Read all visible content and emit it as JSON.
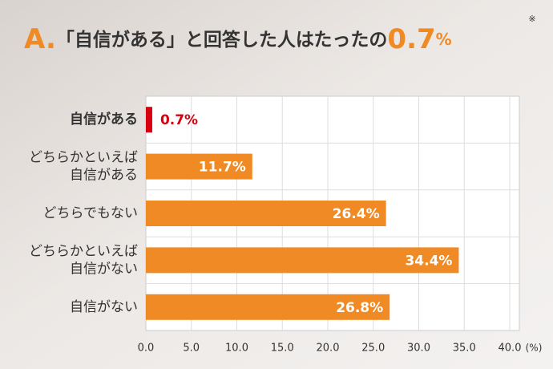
{
  "chart_data": {
    "type": "bar",
    "orientation": "horizontal",
    "title": {
      "prefix": "A.",
      "text": "「自信がある」と回答した人はたったの",
      "highlight": "0.7",
      "unit": "%",
      "note": "※"
    },
    "categories": [
      [
        "自信がある"
      ],
      [
        "どちらかといえば",
        "自信がある"
      ],
      [
        "どちらでもない"
      ],
      [
        "どちらかといえば",
        "自信がない"
      ],
      [
        "自信がない"
      ]
    ],
    "values": [
      0.7,
      11.7,
      26.4,
      34.4,
      26.8
    ],
    "value_labels": [
      "0.7%",
      "11.7%",
      "26.4%",
      "34.4%",
      "26.8%"
    ],
    "colors": [
      "#d7000f",
      "#f08a24",
      "#f08a24",
      "#f08a24",
      "#f08a24"
    ],
    "xlim": [
      0,
      40
    ],
    "xticks": [
      {
        "value": 0,
        "label": "0.0"
      },
      {
        "value": 5,
        "label": "5.0"
      },
      {
        "value": 10,
        "label": "10.0"
      },
      {
        "value": 15,
        "label": "15.0"
      },
      {
        "value": 20,
        "label": "20.0"
      },
      {
        "value": 25,
        "label": "25.0"
      },
      {
        "value": 30,
        "label": "30.0"
      },
      {
        "value": 35,
        "label": "35.0"
      },
      {
        "value": 40,
        "label": "40.0"
      }
    ],
    "x_unit": "(%)",
    "grid": true
  }
}
